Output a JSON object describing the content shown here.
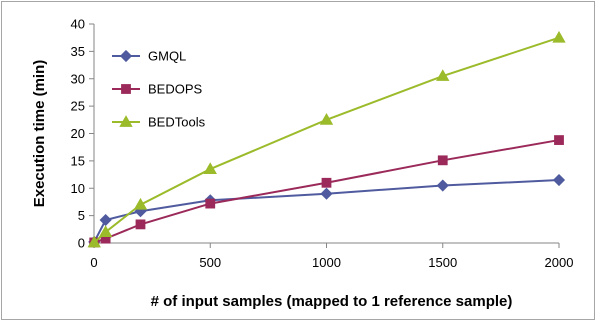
{
  "chart_data": {
    "type": "line",
    "title": "",
    "xlabel": "# of input samples (mapped to 1 reference sample)",
    "ylabel": "Execution time (min)",
    "xlim": [
      0,
      2000
    ],
    "ylim": [
      0,
      40
    ],
    "x_ticks": [
      0,
      500,
      1000,
      1500,
      2000
    ],
    "y_ticks": [
      0,
      5,
      10,
      15,
      20,
      25,
      30,
      35,
      40
    ],
    "grid": false,
    "legend_position": "top-left",
    "series": [
      {
        "name": "GMQL",
        "marker": "diamond",
        "color": "#4f5b9e",
        "x": [
          1,
          50,
          200,
          500,
          1000,
          1500,
          2000
        ],
        "y": [
          0.2,
          4.2,
          5.8,
          7.8,
          9.0,
          10.5,
          11.5
        ]
      },
      {
        "name": "BEDOPS",
        "marker": "square",
        "color": "#9b2a5a",
        "x": [
          1,
          50,
          200,
          500,
          1000,
          1500,
          2000
        ],
        "y": [
          0.1,
          0.8,
          3.4,
          7.2,
          11.0,
          15.1,
          18.8
        ]
      },
      {
        "name": "BEDTools",
        "marker": "triangle",
        "color": "#9bbb2a",
        "x": [
          1,
          50,
          200,
          500,
          1000,
          1500,
          2000
        ],
        "y": [
          0.1,
          2.0,
          7.0,
          13.5,
          22.5,
          30.5,
          37.5
        ]
      }
    ]
  }
}
